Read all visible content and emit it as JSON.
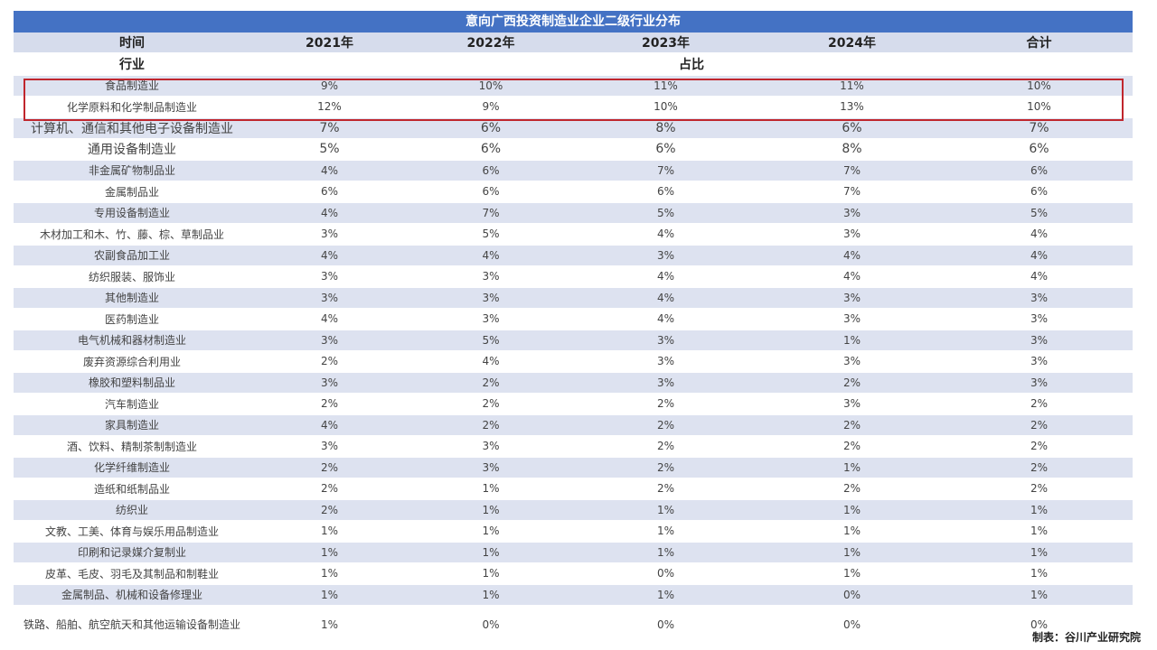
{
  "title": "意向广西投资制造业企业二级行业分布",
  "header": {
    "time_label": "时间",
    "years": [
      "2021年",
      "2022年",
      "2023年",
      "2024年",
      "合计"
    ],
    "industry_label": "行业",
    "share_label": "占比"
  },
  "rows": [
    [
      "食品制造业",
      "9%",
      "10%",
      "11%",
      "11%",
      "10%"
    ],
    [
      "化学原料和化学制品制造业",
      "12%",
      "9%",
      "10%",
      "13%",
      "10%"
    ],
    [
      "计算机、通信和其他电子设备制造业",
      "7%",
      "6%",
      "8%",
      "6%",
      "7%"
    ],
    [
      "通用设备制造业",
      "5%",
      "6%",
      "6%",
      "8%",
      "6%"
    ],
    [
      "非金属矿物制品业",
      "4%",
      "6%",
      "7%",
      "7%",
      "6%"
    ],
    [
      "金属制品业",
      "6%",
      "6%",
      "6%",
      "7%",
      "6%"
    ],
    [
      "专用设备制造业",
      "4%",
      "7%",
      "5%",
      "3%",
      "5%"
    ],
    [
      "木材加工和木、竹、藤、棕、草制品业",
      "3%",
      "5%",
      "4%",
      "3%",
      "4%"
    ],
    [
      "农副食品加工业",
      "4%",
      "4%",
      "3%",
      "4%",
      "4%"
    ],
    [
      "纺织服装、服饰业",
      "3%",
      "3%",
      "4%",
      "4%",
      "4%"
    ],
    [
      "其他制造业",
      "3%",
      "3%",
      "4%",
      "3%",
      "3%"
    ],
    [
      "医药制造业",
      "4%",
      "3%",
      "4%",
      "3%",
      "3%"
    ],
    [
      "电气机械和器材制造业",
      "3%",
      "5%",
      "3%",
      "1%",
      "3%"
    ],
    [
      "废弃资源综合利用业",
      "2%",
      "4%",
      "3%",
      "3%",
      "3%"
    ],
    [
      "橡胶和塑料制品业",
      "3%",
      "2%",
      "3%",
      "2%",
      "3%"
    ],
    [
      "汽车制造业",
      "2%",
      "2%",
      "2%",
      "3%",
      "2%"
    ],
    [
      "家具制造业",
      "4%",
      "2%",
      "2%",
      "2%",
      "2%"
    ],
    [
      "酒、饮料、精制茶制制造业",
      "3%",
      "3%",
      "2%",
      "2%",
      "2%"
    ],
    [
      "化学纤维制造业",
      "2%",
      "3%",
      "2%",
      "1%",
      "2%"
    ],
    [
      "造纸和纸制品业",
      "2%",
      "1%",
      "2%",
      "2%",
      "2%"
    ],
    [
      "纺织业",
      "2%",
      "1%",
      "1%",
      "1%",
      "1%"
    ],
    [
      "文教、工美、体育与娱乐用品制造业",
      "1%",
      "1%",
      "1%",
      "1%",
      "1%"
    ],
    [
      "印刷和记录媒介复制业",
      "1%",
      "1%",
      "1%",
      "1%",
      "1%"
    ],
    [
      "皮革、毛皮、羽毛及其制品和制鞋业",
      "1%",
      "1%",
      "0%",
      "1%",
      "1%"
    ],
    [
      "金属制品、机械和设备修理业",
      "1%",
      "1%",
      "1%",
      "0%",
      "1%"
    ],
    [
      "铁路、船舶、航空航天和其他运输设备制造业",
      "1%",
      "0%",
      "0%",
      "0%",
      "0%"
    ]
  ],
  "credit": "制表：谷川产业研究院",
  "colors": {
    "header_bar": "#4472c4",
    "stripe": "#dde2f0",
    "highlight_border": "#c0262d"
  }
}
